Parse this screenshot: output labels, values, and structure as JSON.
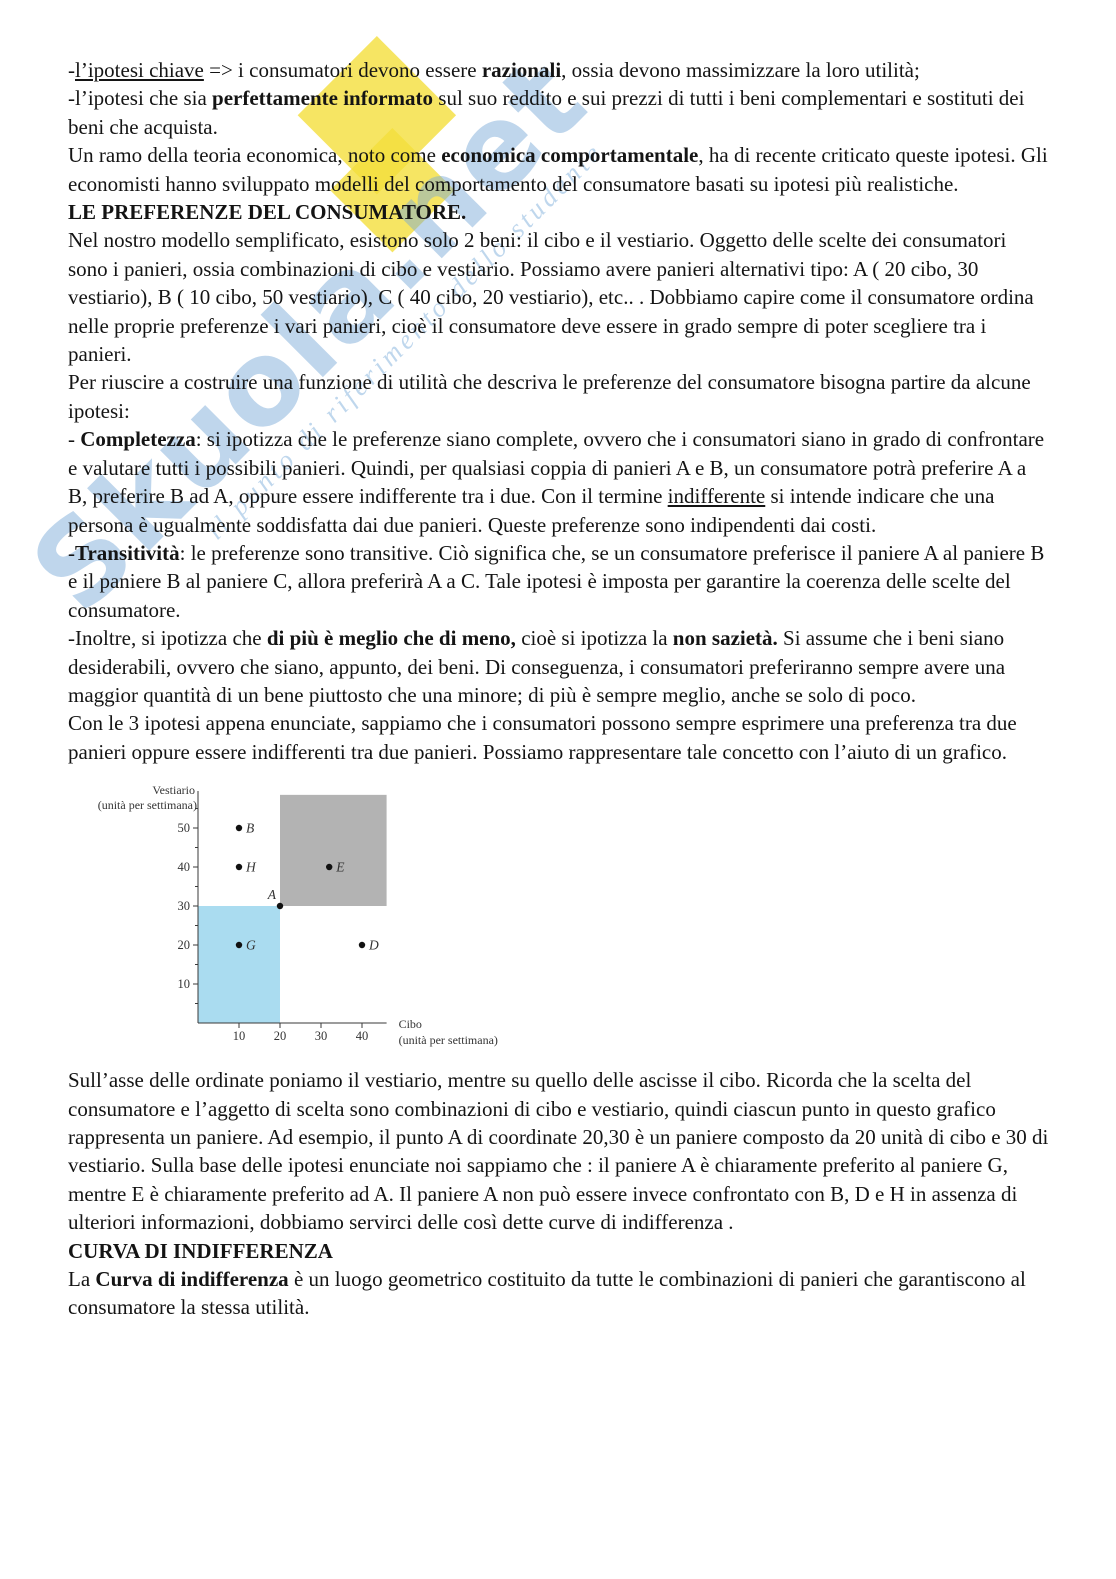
{
  "watermark": {
    "text": "Skuola.net",
    "tagline": "il punto di riferimento dello studente",
    "blue": "#7aaad8",
    "yellow": "#f4df3c"
  },
  "doc": {
    "before": [
      {
        "runs": [
          {
            "t": "-"
          },
          {
            "t": "l’ipotesi chiave",
            "u": true
          },
          {
            "t": " => i consumatori devono essere "
          },
          {
            "t": "razionali",
            "b": true
          },
          {
            "t": ", ossia devono massimizzare la loro utilità;"
          }
        ]
      },
      {
        "runs": [
          {
            "t": "-l’ipotesi che sia "
          },
          {
            "t": "perfettamente informato",
            "b": true
          },
          {
            "t": " sul suo reddito e sui prezzi di tutti i beni complementari e sostituti dei beni che acquista."
          }
        ]
      },
      {
        "runs": [
          {
            "t": "Un ramo della teoria economica, noto come "
          },
          {
            "t": "economica comportamentale",
            "b": true
          },
          {
            "t": ", ha di recente criticato queste ipotesi. Gli economisti hanno sviluppato modelli del comportamento del consumatore basati su ipotesi più realistiche."
          }
        ]
      },
      {
        "heading": true,
        "runs": [
          {
            "t": "LE PREFERENZE DEL CONSUMATORE.",
            "b": true
          }
        ]
      },
      {
        "runs": [
          {
            "t": "Nel nostro modello semplificato, esistono solo 2 beni: il cibo e il vestiario. Oggetto delle scelte dei consumatori sono i panieri, ossia combinazioni di cibo e vestiario. Possiamo avere panieri alternativi tipo: A ( 20 cibo, 30 vestiario), B ( 10 cibo, 50 vestiario), C ( 40 cibo, 20 vestiario), etc.. . Dobbiamo capire come il consumatore ordina nelle proprie preferenze i vari panieri, cioè il consumatore deve essere in grado sempre di poter scegliere tra i panieri."
          }
        ]
      },
      {
        "runs": [
          {
            "t": "Per riuscire a costruire una funzione di utilità che descriva le preferenze del consumatore bisogna partire da alcune ipotesi:"
          }
        ]
      },
      {
        "runs": [
          {
            "t": "- "
          },
          {
            "t": "Completezza",
            "b": true
          },
          {
            "t": ": si ipotizza che le preferenze siano complete, ovvero che i consumatori siano in grado di confrontare e valutare tutti i possibili panieri. Quindi, per qualsiasi coppia di panieri A e B, un consumatore potrà preferire A a B, preferire B ad A, oppure essere indifferente tra i due. Con il termine "
          },
          {
            "t": "indifferente",
            "u": true
          },
          {
            "t": " si intende indicare che una persona è ugualmente soddisfatta dai due panieri. Queste preferenze sono indipendenti dai costi."
          }
        ]
      },
      {
        "runs": [
          {
            "t": "-"
          },
          {
            "t": "Transitività",
            "b": true
          },
          {
            "t": ": le preferenze sono transitive. Ciò significa che, se un consumatore preferisce il paniere A al paniere B e il paniere B al paniere C, allora preferirà A a C. Tale ipotesi è imposta per garantire la coerenza delle scelte del consumatore."
          }
        ]
      },
      {
        "runs": [
          {
            "t": "-Inoltre, si ipotizza che "
          },
          {
            "t": "di più è meglio che di meno,",
            "b": true
          },
          {
            "t": " cioè si ipotizza la "
          },
          {
            "t": "non sazietà.",
            "b": true
          },
          {
            "t": " Si assume che i beni siano desiderabili, ovvero che siano, appunto, dei beni. Di conseguenza, i consumatori preferiranno sempre avere una maggior quantità di un bene piuttosto che una minore; di più è sempre meglio, anche se solo di poco."
          }
        ]
      },
      {
        "runs": [
          {
            "t": "Con le 3 ipotesi appena enunciate, sappiamo che i consumatori possono sempre esprimere una preferenza tra due panieri oppure essere indifferenti tra due panieri. Possiamo rappresentare tale concetto con l’aiuto di un grafico."
          }
        ]
      }
    ],
    "after": [
      {
        "runs": [
          {
            "t": "Sull’asse delle ordinate poniamo il vestiario, mentre su quello delle ascisse il cibo. Ricorda che la scelta del consumatore e l’aggetto di scelta sono combinazioni di cibo e vestiario, quindi ciascun punto in questo grafico rappresenta un paniere. Ad esempio, il punto A di coordinate 20,30 è un paniere composto da 20 unità di cibo e 30 di vestiario. Sulla base delle ipotesi enunciate noi sappiamo che : il paniere A è chiaramente preferito al paniere G, mentre E è chiaramente preferito ad A. Il paniere A non può essere invece confrontato con B, D e H in assenza di ulteriori informazioni, dobbiamo servirci delle così dette curve di indifferenza ."
          }
        ]
      },
      {
        "heading": true,
        "runs": [
          {
            "t": "CURVA DI INDIFFERENZA",
            "b": true
          }
        ]
      },
      {
        "runs": [
          {
            "t": "La "
          },
          {
            "t": "Curva di indifferenza",
            "b": true
          },
          {
            "t": " è un luogo geometrico costituito da tutte le combinazioni di panieri che garantiscono al consumatore la stessa utilità."
          }
        ]
      }
    ]
  },
  "chart_data": {
    "type": "scatter",
    "title": "",
    "xlabel": "Cibo (unità per settimana)",
    "ylabel": "Vestiario (unità per settimana)",
    "xlabel_lines": [
      "Cibo",
      "(unità per settimana)"
    ],
    "ylabel_lines": [
      "Vestiario",
      "(unità per settimana)"
    ],
    "xlim": [
      0,
      46
    ],
    "ylim": [
      0,
      59.5
    ],
    "xticks": [
      10,
      20,
      30,
      40
    ],
    "yticks": [
      10,
      20,
      30,
      40,
      50
    ],
    "y_minor_ticks": [
      5,
      15,
      25,
      35,
      45,
      55
    ],
    "grid": false,
    "legend": null,
    "points": [
      {
        "label": "B",
        "x": 10,
        "y": 50
      },
      {
        "label": "H",
        "x": 10,
        "y": 40
      },
      {
        "label": "E",
        "x": 32,
        "y": 40
      },
      {
        "label": "A",
        "x": 20,
        "y": 30,
        "label_pos": "above-left"
      },
      {
        "label": "G",
        "x": 10,
        "y": 20
      },
      {
        "label": "D",
        "x": 40,
        "y": 20
      }
    ],
    "regions": [
      {
        "name": "worse-than-A",
        "x0": 0,
        "y0": 0,
        "x1": 20,
        "y1": 30,
        "color": "#aadcf0"
      },
      {
        "name": "better-than-A",
        "x0": 20,
        "y0": 30,
        "x1": 46,
        "y1": 58.5,
        "color": "#b3b3b3"
      }
    ],
    "point_color": "#111111",
    "axis_color": "#3a3a3a",
    "label_color": "#333333"
  }
}
